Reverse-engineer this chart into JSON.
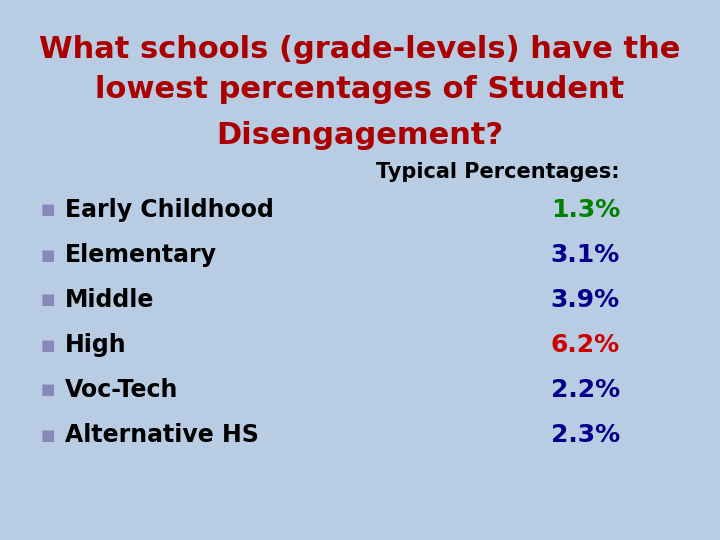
{
  "title_lines": [
    "What schools (grade-levels) have the",
    "lowest percentages of Student",
    "Disengagement?"
  ],
  "title_color": "#aa0000",
  "background_color": "#b8cce4",
  "subtitle": "Typical Percentages:",
  "subtitle_color": "#000000",
  "items": [
    {
      "label": "Early Childhood",
      "value": "1.3%",
      "value_color": "#008000"
    },
    {
      "label": "Elementary",
      "value": "3.1%",
      "value_color": "#00008b"
    },
    {
      "label": "Middle",
      "value": "3.9%",
      "value_color": "#00008b"
    },
    {
      "label": "High",
      "value": "6.2%",
      "value_color": "#cc0000"
    },
    {
      "label": "Voc-Tech",
      "value": "2.2%",
      "value_color": "#00008b"
    },
    {
      "label": "Alternative HS",
      "value": "2.3%",
      "value_color": "#00008b"
    }
  ],
  "bullet_color": "#8888bb",
  "label_color": "#000000",
  "label_fontsize": 17,
  "value_fontsize": 18,
  "title_fontsize": 22,
  "subtitle_fontsize": 15,
  "bullet_fontsize": 11
}
